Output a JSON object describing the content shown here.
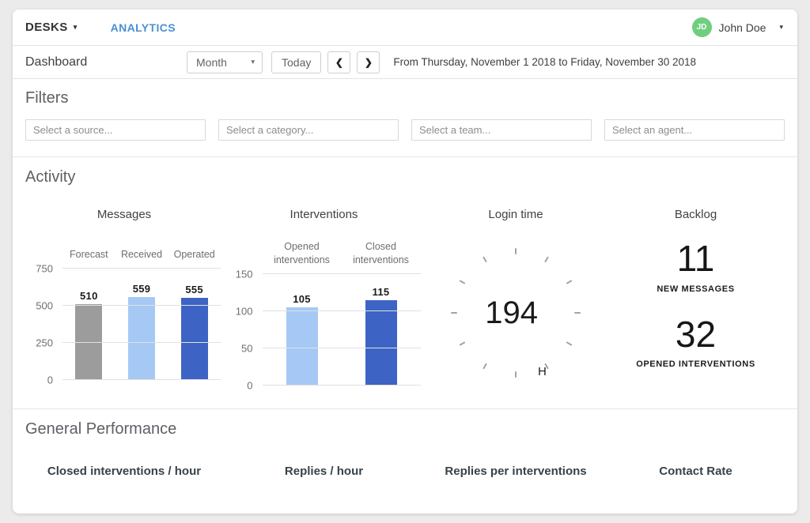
{
  "topnav": {
    "brand": "DESKS",
    "analytics_link": "ANALYTICS",
    "user": {
      "initials": "JD",
      "name": "John Doe"
    }
  },
  "toolbar": {
    "page_title": "Dashboard",
    "period_selected": "Month",
    "today_label": "Today",
    "date_range": "From Thursday, November 1 2018 to Friday, November 30 2018"
  },
  "icons": {
    "caret_down": "▾",
    "prev_arrow": "❮",
    "next_arrow": "❯"
  },
  "colors": {
    "accent_blue": "#4a90d4",
    "avatar_green": "#6fcf7f",
    "bar_gray": "#9c9c9c",
    "bar_light_blue": "#a5c9f4",
    "bar_blue": "#3d64c4"
  },
  "filters": {
    "heading": "Filters",
    "placeholders": [
      "Select a source...",
      "Select a category...",
      "Select a team...",
      "Select an agent..."
    ]
  },
  "activity": {
    "heading": "Activity"
  },
  "chart_data": [
    {
      "type": "bar",
      "title": "Messages",
      "categories": [
        "Forecast",
        "Received",
        "Operated"
      ],
      "values": [
        510,
        559,
        555
      ],
      "colors": [
        "#9c9c9c",
        "#a5c9f4",
        "#3d64c4"
      ],
      "yticks": [
        0,
        250,
        500,
        750
      ],
      "ylim": [
        0,
        750
      ],
      "grid": true,
      "value_labels": true,
      "legend": "none"
    },
    {
      "type": "bar",
      "title": "Interventions",
      "categories": [
        "Opened interventions",
        "Closed interventions"
      ],
      "values": [
        105,
        115
      ],
      "colors": [
        "#a5c9f4",
        "#3d64c4"
      ],
      "yticks": [
        0,
        50,
        100,
        150
      ],
      "ylim": [
        0,
        150
      ],
      "grid": true,
      "value_labels": true,
      "legend": "none"
    }
  ],
  "login_time": {
    "title": "Login time",
    "value": "194",
    "unit": "H"
  },
  "backlog": {
    "title": "Backlog",
    "stats": [
      {
        "value": "11",
        "label": "NEW MESSAGES"
      },
      {
        "value": "32",
        "label": "OPENED INTERVENTIONS"
      }
    ]
  },
  "performance": {
    "heading": "General Performance",
    "metrics": [
      "Closed interventions / hour",
      "Replies / hour",
      "Replies per interventions",
      "Contact Rate"
    ]
  }
}
